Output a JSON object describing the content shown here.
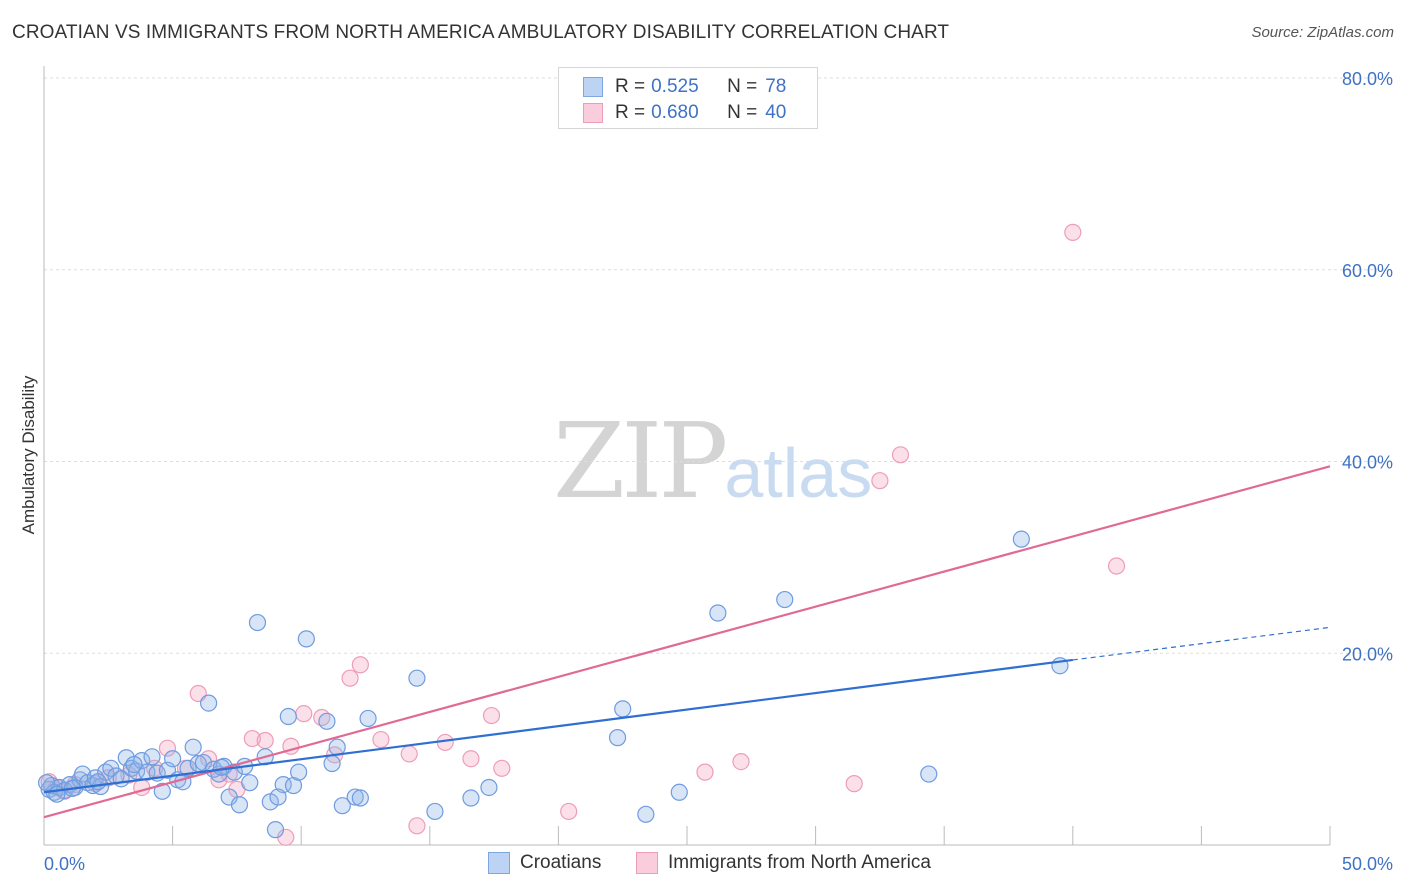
{
  "header": {
    "title": "CROATIAN VS IMMIGRANTS FROM NORTH AMERICA AMBULATORY DISABILITY CORRELATION CHART",
    "source": "Source: ZipAtlas.com"
  },
  "watermark": {
    "zip": "ZIP",
    "atlas": "atlas"
  },
  "legend": {
    "rows": [
      {
        "r_label": "R = ",
        "r_value": "0.525",
        "n_label": "N = ",
        "n_value": "78",
        "color": "#8fb4e8"
      },
      {
        "r_label": "R = ",
        "r_value": "0.680",
        "n_label": "N = ",
        "n_value": "40",
        "color": "#f4a6c0"
      }
    ]
  },
  "bottom_legend": {
    "items": [
      {
        "label": "Croatians",
        "color": "#8fb4e8"
      },
      {
        "label": "Immigrants from North America",
        "color": "#f4a6c0"
      }
    ]
  },
  "chart_data": {
    "type": "scatter",
    "title": "CROATIAN VS IMMIGRANTS FROM NORTH AMERICA AMBULATORY DISABILITY CORRELATION CHART",
    "xlabel": "",
    "ylabel": "Ambulatory Disability",
    "xlim": [
      0,
      50
    ],
    "ylim": [
      0,
      80
    ],
    "x_tick_labels": [
      "0.0%",
      "50.0%"
    ],
    "y_ticks": [
      {
        "value": 20,
        "label": "20.0%"
      },
      {
        "value": 40,
        "label": "40.0%"
      },
      {
        "value": 60,
        "label": "60.0%"
      },
      {
        "value": 80,
        "label": "80.0%"
      }
    ],
    "grid": true,
    "series": [
      {
        "name": "Croatians",
        "color": "#8fb4e8",
        "line_color": "#2e6fd1",
        "R": 0.525,
        "N": 78,
        "trend": {
          "x0": 0,
          "y0": 5.5,
          "x1": 40,
          "y1": 19.3,
          "dash_to_x": 50,
          "dash_to_y": 22.7
        },
        "points": [
          [
            0.2,
            5.8
          ],
          [
            0.3,
            6.2
          ],
          [
            0.4,
            5.5
          ],
          [
            0.6,
            6.0
          ],
          [
            0.8,
            5.7
          ],
          [
            1.0,
            6.3
          ],
          [
            1.2,
            6.0
          ],
          [
            1.4,
            6.8
          ],
          [
            1.5,
            7.4
          ],
          [
            1.7,
            6.5
          ],
          [
            1.9,
            6.2
          ],
          [
            2.0,
            7.0
          ],
          [
            2.2,
            6.1
          ],
          [
            2.4,
            7.6
          ],
          [
            2.6,
            8.0
          ],
          [
            2.8,
            7.2
          ],
          [
            3.0,
            6.9
          ],
          [
            3.2,
            9.1
          ],
          [
            3.4,
            8.0
          ],
          [
            3.6,
            7.7
          ],
          [
            3.8,
            8.8
          ],
          [
            4.0,
            7.6
          ],
          [
            4.2,
            9.2
          ],
          [
            4.4,
            7.5
          ],
          [
            4.6,
            5.6
          ],
          [
            4.8,
            7.8
          ],
          [
            5.0,
            9.0
          ],
          [
            5.2,
            6.8
          ],
          [
            5.4,
            6.6
          ],
          [
            5.6,
            8.0
          ],
          [
            5.8,
            10.2
          ],
          [
            6.0,
            8.5
          ],
          [
            6.2,
            8.6
          ],
          [
            6.4,
            14.8
          ],
          [
            6.6,
            7.9
          ],
          [
            6.8,
            7.4
          ],
          [
            7.0,
            8.2
          ],
          [
            7.2,
            5.0
          ],
          [
            7.4,
            7.6
          ],
          [
            7.6,
            4.2
          ],
          [
            7.8,
            8.2
          ],
          [
            8.0,
            6.5
          ],
          [
            8.3,
            23.2
          ],
          [
            8.6,
            9.2
          ],
          [
            8.8,
            4.5
          ],
          [
            9.0,
            1.6
          ],
          [
            9.3,
            6.3
          ],
          [
            9.5,
            13.4
          ],
          [
            9.7,
            6.2
          ],
          [
            9.9,
            7.6
          ],
          [
            10.2,
            21.5
          ],
          [
            11.0,
            12.9
          ],
          [
            11.2,
            8.5
          ],
          [
            11.4,
            10.2
          ],
          [
            11.6,
            4.1
          ],
          [
            12.1,
            5.0
          ],
          [
            12.3,
            4.9
          ],
          [
            12.6,
            13.2
          ],
          [
            14.5,
            17.4
          ],
          [
            15.2,
            3.5
          ],
          [
            16.6,
            4.9
          ],
          [
            17.3,
            6.0
          ],
          [
            22.3,
            11.2
          ],
          [
            22.5,
            14.2
          ],
          [
            23.4,
            3.2
          ],
          [
            24.7,
            5.5
          ],
          [
            26.2,
            24.2
          ],
          [
            28.8,
            25.6
          ],
          [
            34.4,
            7.4
          ],
          [
            38.0,
            31.9
          ],
          [
            39.5,
            18.7
          ],
          [
            0.1,
            6.5
          ],
          [
            0.5,
            5.3
          ],
          [
            1.1,
            5.9
          ],
          [
            2.1,
            6.6
          ],
          [
            3.5,
            8.4
          ],
          [
            6.9,
            8.1
          ],
          [
            9.1,
            5.0
          ]
        ]
      },
      {
        "name": "Immigrants from North America",
        "color": "#f4a6c0",
        "line_color": "#e06a96",
        "R": 0.68,
        "N": 40,
        "trend": {
          "x0": 0,
          "y0": 2.9,
          "x1": 50,
          "y1": 39.5
        },
        "points": [
          [
            0.2,
            6.6
          ],
          [
            0.5,
            6.0
          ],
          [
            0.8,
            5.6
          ],
          [
            1.2,
            6.3
          ],
          [
            2.0,
            6.4
          ],
          [
            2.5,
            7.0
          ],
          [
            3.3,
            7.3
          ],
          [
            3.8,
            6.0
          ],
          [
            4.3,
            8.0
          ],
          [
            4.8,
            10.1
          ],
          [
            5.5,
            8.0
          ],
          [
            6.0,
            15.8
          ],
          [
            6.4,
            9.0
          ],
          [
            6.8,
            6.8
          ],
          [
            7.2,
            7.4
          ],
          [
            7.5,
            5.8
          ],
          [
            8.1,
            11.1
          ],
          [
            8.6,
            10.9
          ],
          [
            9.4,
            0.8
          ],
          [
            9.6,
            10.3
          ],
          [
            10.1,
            13.7
          ],
          [
            10.8,
            13.3
          ],
          [
            11.3,
            9.4
          ],
          [
            11.9,
            17.4
          ],
          [
            12.3,
            18.8
          ],
          [
            13.1,
            11.0
          ],
          [
            14.2,
            9.5
          ],
          [
            14.5,
            2.0
          ],
          [
            15.6,
            10.7
          ],
          [
            16.6,
            9.0
          ],
          [
            17.4,
            13.5
          ],
          [
            17.8,
            8.0
          ],
          [
            20.4,
            3.5
          ],
          [
            25.7,
            7.6
          ],
          [
            27.1,
            8.7
          ],
          [
            31.5,
            6.4
          ],
          [
            32.5,
            38.0
          ],
          [
            33.3,
            40.7
          ],
          [
            40.0,
            63.9
          ],
          [
            41.7,
            29.1
          ]
        ]
      }
    ]
  }
}
